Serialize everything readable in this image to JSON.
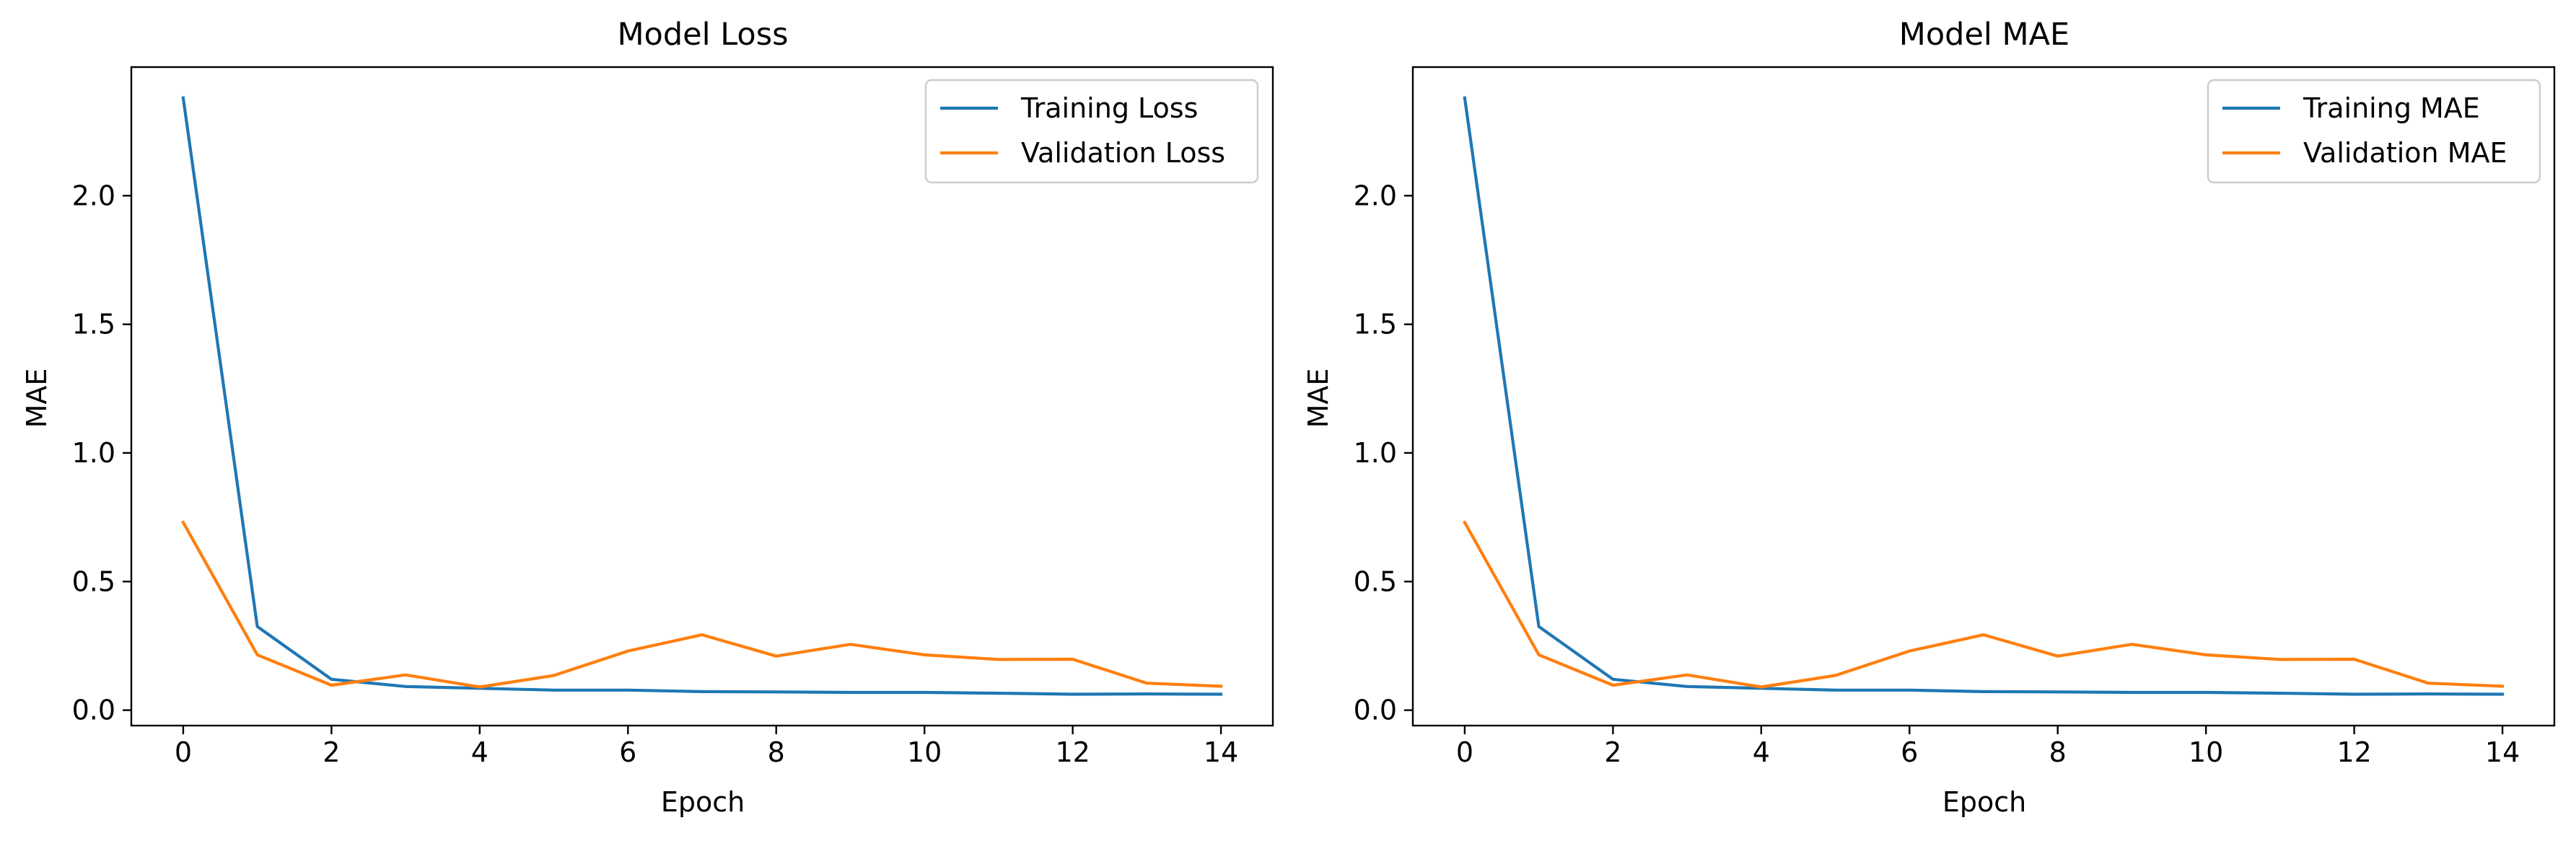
{
  "figure": {
    "background": "#ffffff"
  },
  "chart_data": [
    {
      "type": "line",
      "title": "Model Loss",
      "xlabel": "Epoch",
      "ylabel": "MAE",
      "xlim": [
        -0.7,
        14.7
      ],
      "ylim": [
        -0.06,
        2.5
      ],
      "xticks": [
        0,
        2,
        4,
        6,
        8,
        10,
        12,
        14
      ],
      "xtick_labels": [
        "0",
        "2",
        "4",
        "6",
        "8",
        "10",
        "12",
        "14"
      ],
      "yticks": [
        0.0,
        0.5,
        1.0,
        1.5,
        2.0
      ],
      "ytick_labels": [
        "0.0",
        "0.5",
        "1.0",
        "1.5",
        "2.0"
      ],
      "grid": false,
      "legend_position": "top-right",
      "x": [
        0,
        1,
        2,
        3,
        4,
        5,
        6,
        7,
        8,
        9,
        10,
        11,
        12,
        13,
        14
      ],
      "series": [
        {
          "name": "Training Loss",
          "color": "#1f77b4",
          "values": [
            2.38,
            0.325,
            0.12,
            0.092,
            0.085,
            0.078,
            0.078,
            0.072,
            0.071,
            0.069,
            0.069,
            0.066,
            0.062,
            0.063,
            0.062
          ]
        },
        {
          "name": "Validation Loss",
          "color": "#ff7f0e",
          "values": [
            0.73,
            0.215,
            0.097,
            0.137,
            0.09,
            0.135,
            0.23,
            0.293,
            0.21,
            0.256,
            0.215,
            0.197,
            0.198,
            0.105,
            0.093
          ]
        }
      ]
    },
    {
      "type": "line",
      "title": "Model MAE",
      "xlabel": "Epoch",
      "ylabel": "MAE",
      "xlim": [
        -0.7,
        14.7
      ],
      "ylim": [
        -0.06,
        2.5
      ],
      "xticks": [
        0,
        2,
        4,
        6,
        8,
        10,
        12,
        14
      ],
      "xtick_labels": [
        "0",
        "2",
        "4",
        "6",
        "8",
        "10",
        "12",
        "14"
      ],
      "yticks": [
        0.0,
        0.5,
        1.0,
        1.5,
        2.0
      ],
      "ytick_labels": [
        "0.0",
        "0.5",
        "1.0",
        "1.5",
        "2.0"
      ],
      "grid": false,
      "legend_position": "top-right",
      "x": [
        0,
        1,
        2,
        3,
        4,
        5,
        6,
        7,
        8,
        9,
        10,
        11,
        12,
        13,
        14
      ],
      "series": [
        {
          "name": "Training MAE",
          "color": "#1f77b4",
          "values": [
            2.38,
            0.325,
            0.12,
            0.092,
            0.085,
            0.078,
            0.078,
            0.072,
            0.071,
            0.069,
            0.069,
            0.066,
            0.062,
            0.063,
            0.062
          ]
        },
        {
          "name": "Validation MAE",
          "color": "#ff7f0e",
          "values": [
            0.73,
            0.215,
            0.097,
            0.137,
            0.09,
            0.135,
            0.23,
            0.293,
            0.21,
            0.256,
            0.215,
            0.197,
            0.198,
            0.105,
            0.093
          ]
        }
      ]
    }
  ]
}
